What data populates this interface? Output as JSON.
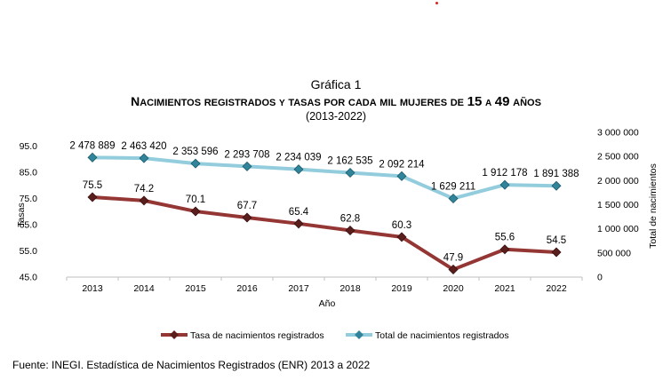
{
  "marker_color": "#e02020",
  "chart_data": {
    "type": "line",
    "title": "Gráfica 1",
    "subtitle": "Nacimientos registrados y tasas por cada mil mujeres de 15 a 49 años",
    "period": "(2013-2022)",
    "xlabel": "Año",
    "ylabel_left": "Tasas",
    "ylabel_right": "Total de nacimientos",
    "categories": [
      "2013",
      "2014",
      "2015",
      "2016",
      "2017",
      "2018",
      "2019",
      "2020",
      "2021",
      "2022"
    ],
    "left_axis": {
      "range": [
        45.0,
        95.0
      ],
      "ticks": [
        "45.0",
        "55.0",
        "65.0",
        "75.0",
        "85.0",
        "95.0"
      ]
    },
    "right_axis": {
      "range": [
        0,
        3000000
      ],
      "ticks": [
        "0",
        "500 000",
        "1 000 000",
        "1 500 000",
        "2 000 000",
        "2 500 000",
        "3 000 000"
      ]
    },
    "series": [
      {
        "name": "Tasa de nacimientos registrados",
        "axis": "left",
        "color": "#943634",
        "marker_color": "#5a1f1d",
        "values": [
          75.5,
          74.2,
          70.1,
          67.7,
          65.4,
          62.8,
          60.3,
          47.9,
          55.6,
          54.5
        ],
        "labels": [
          "75.5",
          "74.2",
          "70.1",
          "67.7",
          "65.4",
          "62.8",
          "60.3",
          "47.9",
          "55.6",
          "54.5"
        ]
      },
      {
        "name": "Total de nacimientos registrados",
        "axis": "right",
        "color": "#93cddd",
        "marker_color": "#31859b",
        "values": [
          2478889,
          2463420,
          2353596,
          2293708,
          2234039,
          2162535,
          2092214,
          1629211,
          1912178,
          1891388
        ],
        "labels": [
          "2 478 889",
          "2 463 420",
          "2 353 596",
          "2 293 708",
          "2 234 039",
          "2 162 535",
          "2 092 214",
          "1 629 211",
          "1 912 178",
          "1 891 388"
        ]
      }
    ],
    "grid": false,
    "legend": "bottom"
  },
  "source": "Fuente: INEGI. Estadística de Nacimientos Registrados (ENR) 2013 a 2022"
}
